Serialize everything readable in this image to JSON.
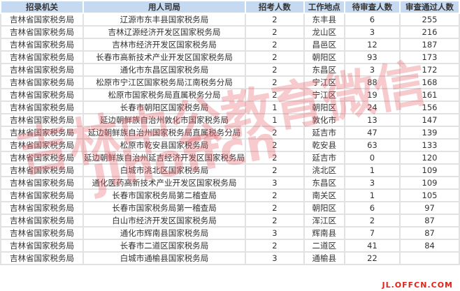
{
  "headers": [
    "招录机关",
    "用人司局",
    "招考人数",
    "工作地点",
    "待审查人数",
    "审查通过人数"
  ],
  "rows": [
    [
      "吉林省国家税务局",
      "辽源市东丰县国家税务局",
      "2",
      "东丰县",
      "6",
      "255"
    ],
    [
      "吉林省国家税务局",
      "吉林辽源经济开发区国家税务局",
      "2",
      "龙山区",
      "3",
      "216"
    ],
    [
      "吉林省国家税务局",
      "吉林市经济开发区国家税务局",
      "2",
      "昌邑区",
      "12",
      "187"
    ],
    [
      "吉林省国家税务局",
      "长春市高新技术产业开发区国家税务局",
      "2",
      "朝阳区",
      "93",
      "173"
    ],
    [
      "吉林省国家税务局",
      "通化市东昌区国家税务局",
      "2",
      "东昌区",
      "3",
      "172"
    ],
    [
      "吉林省国家税务局",
      "松原市宁江区国家税务局江南税务分局",
      "2",
      "宁江区",
      "88",
      "168"
    ],
    [
      "吉林省国家税务局",
      "松原市国家税务局直属税务分局",
      "2",
      "宁江区",
      "19",
      "161"
    ],
    [
      "吉林省国家税务局",
      "长春市朝阳区国家税务局",
      "1",
      "朝阳区",
      "24",
      "156"
    ],
    [
      "吉林省国家税务局",
      "延边朝鲜族自治州敦化市国家税务局",
      "1",
      "敦化市",
      "13",
      "147"
    ],
    [
      "吉林省国家税务局",
      "延边朝鲜族自治州国家税务局直属税务分局",
      "2",
      "延吉市",
      "47",
      "139"
    ],
    [
      "吉林省国家税务局",
      "松原市乾安县国家税务局",
      "2",
      "乾安县",
      "63",
      "133"
    ],
    [
      "吉林省国家税务局",
      "延边朝鲜族自治州延吉经济开发区国家税务局",
      "2",
      "延吉市",
      "0",
      "120"
    ],
    [
      "吉林省国家税务局",
      "白城市洮北区国家税务局",
      "2",
      "洮北区",
      "1",
      "109"
    ],
    [
      "吉林省国家税务局",
      "通化医药高新技术产业开发区国家税务局",
      "3",
      "东昌区",
      "3",
      "109"
    ],
    [
      "吉林省国家税务局",
      "长春市国家税务局第二稽查局",
      "2",
      "南关区",
      "1",
      "105"
    ],
    [
      "吉林省国家税务局",
      "长春市国家税务局第一稽查局",
      "2",
      "朝阳区",
      "6",
      "97"
    ],
    [
      "吉林省国家税务局",
      "白山市经济开发区国家税务局",
      "2",
      "浑江区",
      "2",
      "87"
    ],
    [
      "吉林省国家税务局",
      "通化市辉南县国家税务局",
      "3",
      "辉南县",
      "7",
      "87"
    ],
    [
      "吉林省国家税务局",
      "长春市二道区国家税务局",
      "2",
      "二道区",
      "41",
      "84"
    ],
    [
      "吉林省国家税务局",
      "白城市通榆县国家税务局",
      "3",
      "通榆县",
      "22",
      ""
    ]
  ],
  "watermark": {
    "line1": "吉林中公教育微信",
    "line2": "jlhoffcn"
  },
  "site": "JL.OFFCN.COM",
  "colors": {
    "header_bg": "#c5d9f1",
    "watermark": "#e65a64",
    "site": "#e2231a"
  }
}
